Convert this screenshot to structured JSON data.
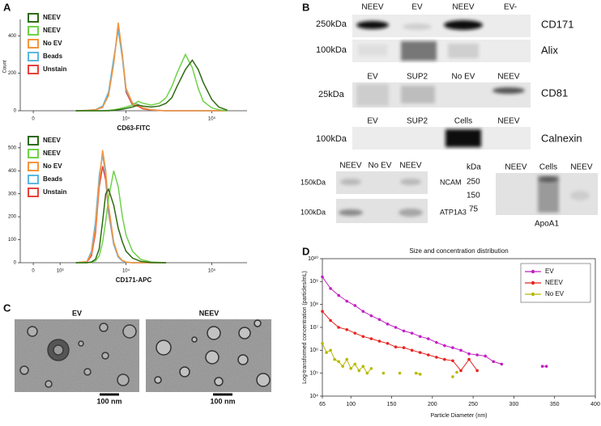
{
  "panel_labels": [
    "A",
    "B",
    "C",
    "D"
  ],
  "chart_data": [
    {
      "type": "line",
      "xlabel": "CD63-FITC",
      "ylabel": "Count",
      "xscale": "symlog",
      "legend": "upper left",
      "xlim": [
        -400,
        250000
      ],
      "xticks": [
        0,
        {
          "value": 10000,
          "label": "10⁴"
        },
        {
          "value": 100000,
          "label": "10⁵"
        }
      ],
      "ylim": [
        0,
        470
      ],
      "yticks": [
        0,
        200,
        400
      ],
      "x": [
        2000,
        3000,
        4000,
        5000,
        6000,
        7000,
        8000,
        9000,
        10000,
        12000,
        14000,
        16000,
        20000,
        25000,
        30000,
        35000,
        40000,
        50000,
        60000,
        70000,
        80000,
        100000,
        120000,
        150000
      ],
      "series": [
        {
          "name": "NEEV",
          "color": "#2e6b12",
          "values": [
            0,
            0,
            0,
            0,
            0,
            2,
            5,
            8,
            12,
            20,
            30,
            25,
            20,
            25,
            40,
            70,
            130,
            220,
            270,
            220,
            150,
            60,
            20,
            3
          ]
        },
        {
          "name": "NEEV",
          "color": "#6fd24a",
          "values": [
            0,
            0,
            0,
            0,
            2,
            5,
            10,
            15,
            20,
            30,
            50,
            40,
            30,
            40,
            70,
            130,
            200,
            300,
            230,
            120,
            50,
            15,
            5,
            0
          ]
        },
        {
          "name": "No EV",
          "color": "#f7943c",
          "values": [
            0,
            2,
            5,
            20,
            80,
            250,
            470,
            300,
            120,
            40,
            30,
            15,
            5,
            2,
            0,
            0,
            0,
            0,
            0,
            0,
            0,
            0,
            0,
            0
          ]
        },
        {
          "name": "Beads",
          "color": "#5bb8e0",
          "values": [
            0,
            2,
            6,
            25,
            100,
            280,
            430,
            280,
            110,
            40,
            35,
            15,
            5,
            2,
            0,
            0,
            0,
            0,
            0,
            0,
            0,
            0,
            0,
            0
          ]
        },
        {
          "name": "Unstain",
          "color": "#e8423a",
          "values": [
            0,
            1,
            5,
            18,
            90,
            260,
            450,
            290,
            100,
            30,
            25,
            10,
            4,
            1,
            0,
            0,
            0,
            0,
            0,
            0,
            0,
            0,
            0,
            0
          ]
        }
      ]
    },
    {
      "type": "line",
      "xlabel": "CD171-APC",
      "xscale": "symlog",
      "legend": "upper left",
      "xlim": [
        -400,
        250000
      ],
      "xticks": [
        0,
        {
          "value": 1000,
          "label": "10³"
        },
        {
          "value": 10000,
          "label": "10⁴"
        },
        {
          "value": 100000,
          "label": "10⁵"
        }
      ],
      "ylim": [
        0,
        510
      ],
      "yticks": [
        0,
        100,
        200,
        300,
        400,
        500
      ],
      "x": [
        2000,
        3000,
        3500,
        4000,
        4500,
        5000,
        5500,
        6000,
        7000,
        8000,
        9000,
        10000,
        12000,
        15000,
        20000,
        30000
      ],
      "series": [
        {
          "name": "NEEV",
          "color": "#2e6b12",
          "values": [
            0,
            0,
            3,
            15,
            60,
            180,
            300,
            320,
            250,
            150,
            90,
            50,
            20,
            6,
            1,
            0
          ]
        },
        {
          "name": "NEEV",
          "color": "#6fd24a",
          "values": [
            0,
            0,
            2,
            8,
            30,
            90,
            180,
            280,
            400,
            330,
            200,
            120,
            50,
            15,
            3,
            0
          ]
        },
        {
          "name": "No EV",
          "color": "#f7943c",
          "values": [
            0,
            5,
            40,
            150,
            350,
            490,
            400,
            250,
            90,
            30,
            10,
            3,
            0,
            0,
            0,
            0
          ]
        },
        {
          "name": "Beads",
          "color": "#5bb8e0",
          "values": [
            0,
            5,
            50,
            180,
            380,
            470,
            380,
            230,
            80,
            25,
            8,
            2,
            0,
            0,
            0,
            0
          ]
        },
        {
          "name": "Unstain",
          "color": "#e8423a",
          "values": [
            0,
            3,
            30,
            130,
            330,
            420,
            360,
            220,
            80,
            25,
            8,
            2,
            0,
            0,
            0,
            0
          ]
        }
      ]
    },
    {
      "type": "line",
      "title": "Size and concentration distribution",
      "xlabel": "Particle Diameter (nm)",
      "ylabel": "Log-transformed concentration (particles/mL)",
      "yscale": "log",
      "legend": "upper right",
      "markers": true,
      "xlim": [
        65,
        400
      ],
      "xticks": [
        65,
        100,
        150,
        200,
        250,
        300,
        350,
        400
      ],
      "ylim": [
        10000,
        10000000000
      ],
      "yticks": [
        {
          "value": 10000,
          "label": "10⁴"
        },
        {
          "value": 100000,
          "label": "10⁵"
        },
        {
          "value": 1000000,
          "label": "10⁶"
        },
        {
          "value": 10000000,
          "label": "10⁷"
        },
        {
          "value": 100000000,
          "label": "10⁸"
        },
        {
          "value": 1000000000,
          "label": "10⁹"
        },
        {
          "value": 10000000000,
          "label": "10¹⁰"
        }
      ],
      "series": [
        {
          "name": "EV",
          "color": "#c21fc2",
          "x": [
            65,
            75,
            85,
            95,
            105,
            115,
            125,
            135,
            145,
            155,
            165,
            175,
            185,
            195,
            205,
            215,
            225,
            235,
            245,
            255,
            265,
            275,
            285,
            310,
            335,
            340
          ],
          "values": [
            1600000000.0,
            500000000.0,
            250000000.0,
            140000000.0,
            90000000.0,
            50000000.0,
            32000000.0,
            22000000.0,
            14000000.0,
            10000000.0,
            7000000.0,
            5600000.0,
            4000000.0,
            3200000.0,
            2200000.0,
            1600000.0,
            1300000.0,
            1000000.0,
            700000.0,
            630000.0,
            560000.0,
            320000.0,
            250000.0,
            null,
            200000.0,
            200000.0
          ]
        },
        {
          "name": "NEEV",
          "color": "#e8231f",
          "x": [
            65,
            75,
            85,
            95,
            105,
            115,
            125,
            135,
            145,
            155,
            165,
            175,
            185,
            195,
            205,
            215,
            225,
            235,
            245,
            255
          ],
          "values": [
            50000000.0,
            20000000.0,
            10000000.0,
            8000000.0,
            5600000.0,
            4000000.0,
            3200000.0,
            2500000.0,
            2000000.0,
            1400000.0,
            1300000.0,
            1000000.0,
            800000.0,
            630000.0,
            500000.0,
            400000.0,
            350000.0,
            130000.0,
            400000.0,
            130000.0
          ]
        },
        {
          "name": "No EV",
          "color": "#b8b800",
          "x": [
            65,
            70,
            75,
            80,
            85,
            90,
            95,
            100,
            105,
            110,
            115,
            120,
            125,
            132,
            140,
            150,
            160,
            170,
            180,
            185,
            200,
            225,
            228,
            230
          ],
          "values": [
            2000000.0,
            800000.0,
            1000000.0,
            400000.0,
            320000.0,
            200000.0,
            400000.0,
            160000.0,
            250000.0,
            130000.0,
            200000.0,
            100000.0,
            160000.0,
            null,
            100000.0,
            null,
            100000.0,
            null,
            100000.0,
            90000.0,
            null,
            70000.0,
            null,
            110000.0
          ]
        }
      ]
    }
  ],
  "western_blots": [
    {
      "lanes": [
        "NEEV",
        "EV",
        "NEEV",
        "EV-"
      ],
      "rows": [
        {
          "size": "250kDa",
          "protein": "CD171"
        },
        {
          "size": "100kDa",
          "protein": "Alix"
        }
      ]
    },
    {
      "lanes": [
        "EV",
        "SUP2",
        "No EV",
        "NEEV"
      ],
      "rows": [
        {
          "size": "25kDa",
          "protein": "CD81"
        }
      ]
    },
    {
      "lanes": [
        "EV",
        "SUP2",
        "Cells",
        "NEEV"
      ],
      "rows": [
        {
          "size": "100kDa",
          "protein": "Calnexin"
        }
      ]
    },
    {
      "lanes": [
        "NEEV",
        "No EV",
        "NEEV"
      ],
      "rows": [
        {
          "size": "150kDa",
          "protein": "NCAM"
        },
        {
          "size": "100kDa",
          "protein": "ATP1A3"
        }
      ]
    },
    {
      "unit": "kDa",
      "lanes": [
        "NEEV",
        "Cells",
        "NEEV"
      ],
      "ladder": [
        250,
        150,
        75
      ],
      "protein": "ApoA1"
    }
  ],
  "micrographs": [
    {
      "label": "EV",
      "scale_bar": "100 nm"
    },
    {
      "label": "NEEV",
      "scale_bar": "100 nm"
    }
  ]
}
